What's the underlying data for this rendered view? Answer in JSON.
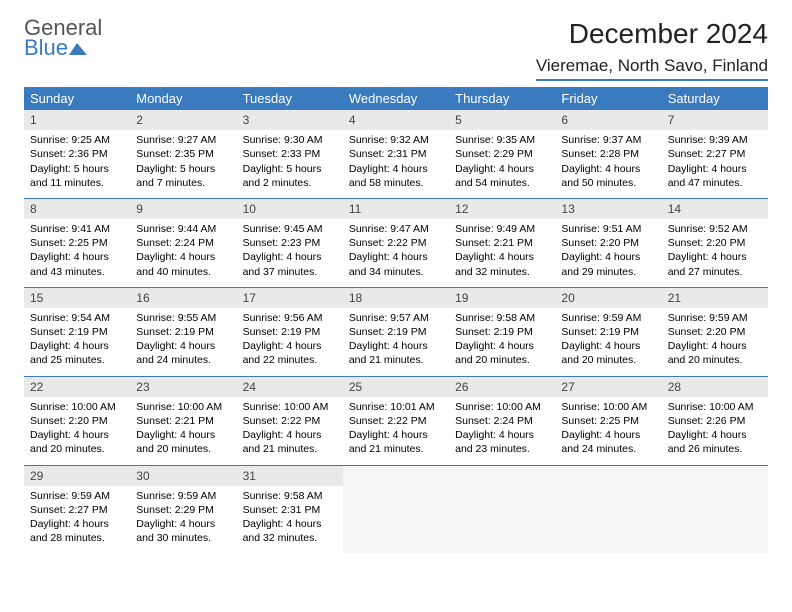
{
  "logo": {
    "line1": "General",
    "line2": "Blue"
  },
  "title": "December 2024",
  "subtitle": "Vieremae, North Savo, Finland",
  "colors": {
    "brand": "#3a7bbf",
    "header_bg": "#3a7bbf",
    "header_text": "#ffffff",
    "daynum_bg": "#e9e9e9",
    "empty_bg": "#f6f6f6",
    "border": "#3a7bbf"
  },
  "day_headers": [
    "Sunday",
    "Monday",
    "Tuesday",
    "Wednesday",
    "Thursday",
    "Friday",
    "Saturday"
  ],
  "weeks": [
    [
      {
        "n": 1,
        "sr": "9:25 AM",
        "ss": "2:36 PM",
        "dl": "5 hours and 11 minutes."
      },
      {
        "n": 2,
        "sr": "9:27 AM",
        "ss": "2:35 PM",
        "dl": "5 hours and 7 minutes."
      },
      {
        "n": 3,
        "sr": "9:30 AM",
        "ss": "2:33 PM",
        "dl": "5 hours and 2 minutes."
      },
      {
        "n": 4,
        "sr": "9:32 AM",
        "ss": "2:31 PM",
        "dl": "4 hours and 58 minutes."
      },
      {
        "n": 5,
        "sr": "9:35 AM",
        "ss": "2:29 PM",
        "dl": "4 hours and 54 minutes."
      },
      {
        "n": 6,
        "sr": "9:37 AM",
        "ss": "2:28 PM",
        "dl": "4 hours and 50 minutes."
      },
      {
        "n": 7,
        "sr": "9:39 AM",
        "ss": "2:27 PM",
        "dl": "4 hours and 47 minutes."
      }
    ],
    [
      {
        "n": 8,
        "sr": "9:41 AM",
        "ss": "2:25 PM",
        "dl": "4 hours and 43 minutes."
      },
      {
        "n": 9,
        "sr": "9:44 AM",
        "ss": "2:24 PM",
        "dl": "4 hours and 40 minutes."
      },
      {
        "n": 10,
        "sr": "9:45 AM",
        "ss": "2:23 PM",
        "dl": "4 hours and 37 minutes."
      },
      {
        "n": 11,
        "sr": "9:47 AM",
        "ss": "2:22 PM",
        "dl": "4 hours and 34 minutes."
      },
      {
        "n": 12,
        "sr": "9:49 AM",
        "ss": "2:21 PM",
        "dl": "4 hours and 32 minutes."
      },
      {
        "n": 13,
        "sr": "9:51 AM",
        "ss": "2:20 PM",
        "dl": "4 hours and 29 minutes."
      },
      {
        "n": 14,
        "sr": "9:52 AM",
        "ss": "2:20 PM",
        "dl": "4 hours and 27 minutes."
      }
    ],
    [
      {
        "n": 15,
        "sr": "9:54 AM",
        "ss": "2:19 PM",
        "dl": "4 hours and 25 minutes."
      },
      {
        "n": 16,
        "sr": "9:55 AM",
        "ss": "2:19 PM",
        "dl": "4 hours and 24 minutes."
      },
      {
        "n": 17,
        "sr": "9:56 AM",
        "ss": "2:19 PM",
        "dl": "4 hours and 22 minutes."
      },
      {
        "n": 18,
        "sr": "9:57 AM",
        "ss": "2:19 PM",
        "dl": "4 hours and 21 minutes."
      },
      {
        "n": 19,
        "sr": "9:58 AM",
        "ss": "2:19 PM",
        "dl": "4 hours and 20 minutes."
      },
      {
        "n": 20,
        "sr": "9:59 AM",
        "ss": "2:19 PM",
        "dl": "4 hours and 20 minutes."
      },
      {
        "n": 21,
        "sr": "9:59 AM",
        "ss": "2:20 PM",
        "dl": "4 hours and 20 minutes."
      }
    ],
    [
      {
        "n": 22,
        "sr": "10:00 AM",
        "ss": "2:20 PM",
        "dl": "4 hours and 20 minutes."
      },
      {
        "n": 23,
        "sr": "10:00 AM",
        "ss": "2:21 PM",
        "dl": "4 hours and 20 minutes."
      },
      {
        "n": 24,
        "sr": "10:00 AM",
        "ss": "2:22 PM",
        "dl": "4 hours and 21 minutes."
      },
      {
        "n": 25,
        "sr": "10:01 AM",
        "ss": "2:22 PM",
        "dl": "4 hours and 21 minutes."
      },
      {
        "n": 26,
        "sr": "10:00 AM",
        "ss": "2:24 PM",
        "dl": "4 hours and 23 minutes."
      },
      {
        "n": 27,
        "sr": "10:00 AM",
        "ss": "2:25 PM",
        "dl": "4 hours and 24 minutes."
      },
      {
        "n": 28,
        "sr": "10:00 AM",
        "ss": "2:26 PM",
        "dl": "4 hours and 26 minutes."
      }
    ],
    [
      {
        "n": 29,
        "sr": "9:59 AM",
        "ss": "2:27 PM",
        "dl": "4 hours and 28 minutes."
      },
      {
        "n": 30,
        "sr": "9:59 AM",
        "ss": "2:29 PM",
        "dl": "4 hours and 30 minutes."
      },
      {
        "n": 31,
        "sr": "9:58 AM",
        "ss": "2:31 PM",
        "dl": "4 hours and 32 minutes."
      },
      null,
      null,
      null,
      null
    ]
  ],
  "labels": {
    "sunrise": "Sunrise: ",
    "sunset": "Sunset: ",
    "daylight": "Daylight: "
  }
}
